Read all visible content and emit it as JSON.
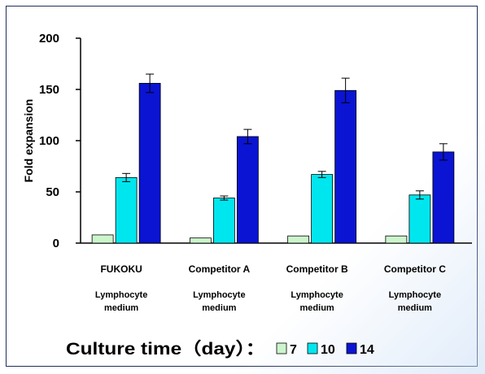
{
  "chart_data": {
    "type": "bar",
    "ylabel": "Fold expansion",
    "ylim": [
      0,
      200
    ],
    "yticks": [
      "0",
      "50",
      "100",
      "150",
      "200"
    ],
    "categories": [
      "FUKOKU",
      "Competitor A",
      "Competitor B",
      "Competitor C"
    ],
    "category_sublabels": [
      [
        "Lymphocyte",
        "medium"
      ],
      [
        "Lymphocyte",
        "medium"
      ],
      [
        "Lymphocyte",
        "medium"
      ],
      [
        "Lymphocyte",
        "medium"
      ]
    ],
    "series": [
      {
        "name": "7",
        "color": "#ccf5cc",
        "values": [
          8,
          5,
          7,
          7
        ],
        "errors": [
          0,
          0,
          0,
          0
        ]
      },
      {
        "name": "10",
        "color": "#00e6ee",
        "values": [
          64,
          44,
          67,
          47
        ],
        "errors": [
          4,
          2,
          3,
          4
        ]
      },
      {
        "name": "14",
        "color": "#0a14d2",
        "values": [
          156,
          104,
          149,
          89
        ],
        "errors": [
          9,
          7,
          12,
          8
        ]
      }
    ],
    "legend": {
      "title": "Culture time（day）：",
      "position": "bottom"
    },
    "grid": false
  }
}
